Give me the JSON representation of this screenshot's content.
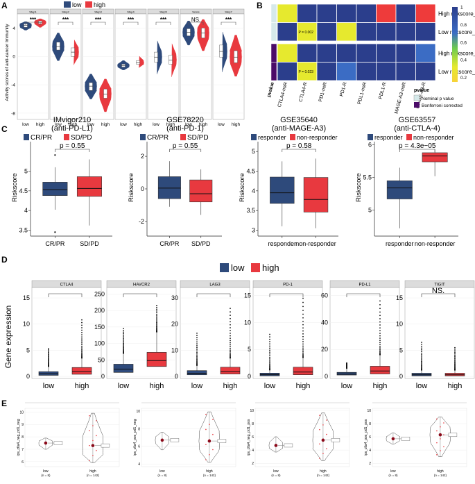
{
  "chart_data": [
    {
      "panel": "A",
      "type": "violin",
      "ylabel": "Activity scores of anti-cancer Immunity",
      "groups": [
        "low",
        "high"
      ],
      "legend": [
        "low",
        "high"
      ],
      "ylim": [
        -8.5,
        5.8
      ],
      "yticks": [
        -8,
        -4,
        0,
        4
      ],
      "facets": [
        {
          "name": "Step1",
          "sig": "***",
          "low": {
            "median": 4.4,
            "q1": 4.1,
            "q3": 4.6,
            "min": 3.7,
            "max": 4.9
          },
          "high": {
            "median": 4.8,
            "q1": 4.6,
            "q3": 5.0,
            "min": 4.1,
            "max": 5.3
          }
        },
        {
          "name": "Step2",
          "sig": "***",
          "low": {
            "median": 1.4,
            "q1": 0.9,
            "q3": 2.0,
            "min": -0.6,
            "max": 3.3
          },
          "high": {
            "median": 0.6,
            "q1": 0.0,
            "q3": 1.2,
            "min": -1.2,
            "max": 2.5
          }
        },
        {
          "name": "Step3",
          "sig": "***",
          "low": {
            "median": -4.2,
            "q1": -4.8,
            "q3": -3.7,
            "min": -6.0,
            "max": -2.5
          },
          "high": {
            "median": -5.3,
            "q1": -5.9,
            "q3": -4.6,
            "min": -7.8,
            "max": -3.2
          }
        },
        {
          "name": "Step4",
          "sig": "***",
          "low": {
            "median": -1.3,
            "q1": -1.5,
            "q3": -1.1,
            "min": -1.9,
            "max": -0.6
          },
          "high": {
            "median": -0.9,
            "q1": -1.1,
            "q3": -0.6,
            "min": -1.6,
            "max": 0.1
          }
        },
        {
          "name": "Step5",
          "sig": "***",
          "low": {
            "median": -0.1,
            "q1": -0.8,
            "q3": 0.6,
            "min": -2.5,
            "max": 2.4
          },
          "high": {
            "median": -0.5,
            "q1": -1.1,
            "q3": 0.2,
            "min": -2.9,
            "max": 2.0
          }
        },
        {
          "name": "Score",
          "sig": "NS.",
          "low": {
            "median": 3.4,
            "q1": 2.9,
            "q3": 3.9,
            "min": 1.6,
            "max": 5.0
          },
          "high": {
            "median": 3.3,
            "q1": 2.6,
            "q3": 4.0,
            "min": 0.8,
            "max": 5.2
          }
        },
        {
          "name": "Step7",
          "sig": "***",
          "low": {
            "median": 0.7,
            "q1": -0.1,
            "q3": 1.6,
            "min": -2.2,
            "max": 3.7
          },
          "high": {
            "median": -0.1,
            "q1": -0.9,
            "q3": 0.8,
            "min": -2.8,
            "max": 3.0
          }
        }
      ]
    },
    {
      "panel": "B",
      "type": "heatmap",
      "columns": [
        "CTLA4-noR",
        "CTLA4-R",
        "PD1-noR",
        "PD1-R",
        "PDL1-noR",
        "PDL1-R",
        "MAGE-A3-noR",
        "MAGE-A3-R"
      ],
      "rows": [
        "High riskscore_p",
        "Low riskscore_p",
        "High riskscore_b",
        "Low riskscore_b"
      ],
      "row_pvalue_type": [
        "Nominal p value",
        "Nominal p value",
        "Bonferroni corrected",
        "Bonferroni corrected"
      ],
      "values": [
        [
          0.5,
          1.0,
          1.0,
          1.0,
          1.0,
          0.0,
          1.0,
          0.0
        ],
        [
          1.0,
          0.5,
          1.0,
          0.5,
          1.0,
          1.0,
          1.0,
          1.0
        ],
        [
          0.5,
          1.0,
          1.0,
          1.0,
          1.0,
          1.0,
          1.0,
          0.8
        ],
        [
          1.0,
          0.5,
          1.0,
          0.8,
          1.0,
          1.0,
          1.0,
          1.0
        ]
      ],
      "cell_labels": [
        {
          "row": 1,
          "col": 1,
          "text": "P = 0.002"
        },
        {
          "row": 3,
          "col": 1,
          "text": "P = 0.023"
        }
      ],
      "colorbar_ticks": [
        1,
        0.8,
        0.6,
        0.4,
        0.2
      ],
      "legend_title": "pvalue",
      "legend_entries": [
        "Nominal p value",
        "Bonferroni corrected"
      ],
      "annotation_label": "pvalue"
    },
    {
      "panel": "C",
      "type": "box",
      "ylabel": "Riskscore",
      "subplots": [
        {
          "title": "IMvigor210",
          "subtitle": "(anti-PD-L1)",
          "legend": [
            "CR/PR",
            "SD/PD"
          ],
          "categories": [
            "CR/PR",
            "SD/PD"
          ],
          "pvalue": "p = 0.55",
          "ylim": [
            3.35,
            5.75
          ],
          "yticks": [
            3.5,
            4.0,
            4.5,
            5.0
          ],
          "boxes": [
            {
              "min": 4.02,
              "q1": 4.38,
              "median": 4.53,
              "q3": 4.72,
              "max": 5.1,
              "outliers": [
                3.45,
                5.41
              ]
            },
            {
              "min": 3.62,
              "q1": 4.36,
              "median": 4.56,
              "q3": 4.86,
              "max": 5.3,
              "outliers": []
            }
          ]
        },
        {
          "title": "GSE78220",
          "subtitle": "(anti-PD-1)",
          "legend": [
            "CR/PR",
            "SD/PD"
          ],
          "categories": [
            "CR/PR",
            "SD/PD"
          ],
          "pvalue": "p = 0.55",
          "ylim": [
            -2.9,
            2.9
          ],
          "yticks": [
            -2,
            0,
            2
          ],
          "boxes": [
            {
              "min": -1.1,
              "q1": -0.6,
              "median": 0.05,
              "q3": 0.75,
              "max": 1.7,
              "outliers": []
            },
            {
              "min": -1.6,
              "q1": -0.8,
              "median": -0.3,
              "q3": 0.55,
              "max": 1.2,
              "outliers": []
            }
          ]
        },
        {
          "title": "GSE35640",
          "subtitle": "(anti-MAGE-A3)",
          "legend": [
            "responder",
            "non-responder"
          ],
          "categories": [
            "responder",
            "non-responder"
          ],
          "pvalue": "p = 0.58",
          "ylim": [
            2.85,
            5.25
          ],
          "yticks": [
            3.0,
            3.5,
            4.0,
            4.5,
            5.0
          ],
          "boxes": [
            {
              "min": 3.1,
              "q1": 3.68,
              "median": 3.95,
              "q3": 4.35,
              "max": 4.75,
              "outliers": []
            },
            {
              "min": 3.05,
              "q1": 3.46,
              "median": 3.78,
              "q3": 4.34,
              "max": 4.82,
              "outliers": []
            }
          ]
        },
        {
          "title": "GSE63557",
          "subtitle": "(anti-CTLA-4)",
          "legend": [
            "responder",
            "non-responder"
          ],
          "categories": [
            "responder",
            "non-responder"
          ],
          "pvalue": "p = 4.3e−05",
          "ylim": [
            4.6,
            6.05
          ],
          "yticks": [
            5.0,
            5.5,
            6.0
          ],
          "boxes": [
            {
              "min": 4.72,
              "q1": 5.17,
              "median": 5.34,
              "q3": 5.45,
              "max": 5.65,
              "outliers": []
            },
            {
              "min": 5.52,
              "q1": 5.74,
              "median": 5.83,
              "q3": 5.88,
              "max": 5.93,
              "outliers": []
            }
          ]
        }
      ]
    },
    {
      "panel": "D",
      "type": "box",
      "ylabel": "Gene expression",
      "legend": [
        "low",
        "high"
      ],
      "categories": [
        "low",
        "high"
      ],
      "facets": [
        {
          "name": "CTLA4",
          "sig": "",
          "ylim": [
            0,
            17
          ],
          "yticks": [
            0,
            5,
            10,
            15
          ],
          "low": {
            "q1": 0.2,
            "median": 0.5,
            "q3": 0.9,
            "max": 1.9,
            "outlier_max": 5.3
          },
          "high": {
            "q1": 0.4,
            "median": 0.9,
            "q3": 1.7,
            "max": 3.5,
            "outlier_max": 10.8
          }
        },
        {
          "name": "HAVCR2",
          "sig": "",
          "ylim": [
            0,
            270
          ],
          "yticks": [
            0,
            50,
            100,
            150,
            200,
            250
          ],
          "low": {
            "q1": 12,
            "median": 22,
            "q3": 37,
            "max": 70,
            "outlier_max": 145
          },
          "high": {
            "q1": 30,
            "median": 48,
            "q3": 73,
            "max": 135,
            "outlier_max": 215
          }
        },
        {
          "name": "LAG3",
          "sig": "",
          "ylim": [
            0,
            34
          ],
          "yticks": [
            0,
            10,
            20,
            30
          ],
          "low": {
            "q1": 0.6,
            "median": 1.2,
            "q3": 2.2,
            "max": 4.2,
            "outlier_max": 16.5
          },
          "high": {
            "q1": 0.9,
            "median": 1.8,
            "q3": 3.5,
            "max": 7.0,
            "outlier_max": 26
          }
        },
        {
          "name": "PD-1",
          "sig": "",
          "ylim": [
            0,
            16.5
          ],
          "yticks": [
            0,
            5,
            10,
            15
          ],
          "low": {
            "q1": 0.1,
            "median": 0.3,
            "q3": 0.6,
            "max": 1.2,
            "outlier_max": 7.8
          },
          "high": {
            "q1": 0.3,
            "median": 0.8,
            "q3": 1.7,
            "max": 3.5,
            "outlier_max": 14.5
          }
        },
        {
          "name": "PD-L1",
          "sig": "",
          "ylim": [
            0,
            66
          ],
          "yticks": [
            0,
            20,
            40,
            60
          ],
          "low": {
            "q1": 1.0,
            "median": 1.7,
            "q3": 3.0,
            "max": 6.0,
            "outlier_max": 10
          },
          "high": {
            "q1": 1.8,
            "median": 4.0,
            "q3": 7.5,
            "max": 16,
            "outlier_max": 56
          }
        },
        {
          "name": "TIGIT",
          "sig": "NS.",
          "ylim": [
            0,
            17
          ],
          "yticks": [
            0,
            5,
            10,
            15
          ],
          "low": {
            "q1": 0.1,
            "median": 0.3,
            "q3": 0.6,
            "max": 1.2,
            "outlier_max": 6.5
          },
          "high": {
            "q1": 0.1,
            "median": 0.3,
            "q3": 0.6,
            "max": 1.2,
            "outlier_max": 5.5
          }
        }
      ]
    },
    {
      "panel": "E",
      "type": "violin",
      "categories": [
        "low",
        "high"
      ],
      "ns": [
        "(n = 8)",
        "(n = 142)"
      ],
      "subplots": [
        {
          "ylabel": "ips_ctla4_neg_pd1_neg",
          "ylim": [
            5.6,
            10.3
          ],
          "yticks": [
            6,
            7,
            8,
            9,
            10
          ],
          "low_mean": 7.5,
          "high_mean": 7.3,
          "low_range": [
            7.0,
            7.9
          ],
          "high_range": [
            5.9,
            9.9
          ]
        },
        {
          "ylabel": "ips_ctla4_pos_pd1_neg",
          "ylim": [
            3.7,
            10.3
          ],
          "yticks": [
            4,
            6,
            8,
            10
          ],
          "low_mean": 6.7,
          "high_mean": 6.6,
          "low_range": [
            5.6,
            7.6
          ],
          "high_range": [
            4.2,
            9.9
          ]
        },
        {
          "ylabel": "ips_ctla4_neg_pd1_pos",
          "ylim": [
            1.5,
            10.3
          ],
          "yticks": [
            2,
            4,
            6,
            8,
            10
          ],
          "low_mean": 4.7,
          "high_mean": 5.5,
          "low_range": [
            3.7,
            6.0
          ],
          "high_range": [
            2.4,
            9.6
          ]
        },
        {
          "ylabel": "ips_ctla4_pos_pd1_pos",
          "ylim": [
            1.5,
            10.3
          ],
          "yticks": [
            2,
            4,
            6,
            8,
            10
          ],
          "low_mean": 5.7,
          "high_mean": 6.3,
          "low_range": [
            4.9,
            6.6
          ],
          "high_range": [
            3.0,
            9.0
          ]
        }
      ]
    }
  ],
  "panel_labels": [
    "A",
    "B",
    "C",
    "D",
    "E"
  ],
  "colors": {
    "low": "#2E4A7B",
    "high": "#E8393F",
    "strip": "#DCDCDC",
    "heat_hi": "#2B3E8C",
    "heat_mid": "#E6E92E",
    "heat_lo": "#EE3B3B",
    "bonferroni": "#4B0B68",
    "nominal": "#D6E9EA"
  }
}
